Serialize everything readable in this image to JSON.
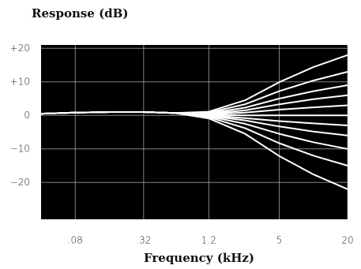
{
  "chart_data": {
    "type": "line",
    "title": "Response (dB)",
    "x_label": "Frequency (kHz)",
    "log_x": true,
    "grid": true,
    "color": "#ffffff",
    "background": "#000000",
    "x": [
      0.04,
      0.08,
      0.16,
      0.32,
      0.6,
      1.2,
      2.5,
      5,
      10,
      20
    ],
    "series": [
      {
        "values": [
          0.5,
          0.8,
          1,
          1,
          0.7,
          1.1,
          4.5,
          9.9,
          14.4,
          18
        ]
      },
      {
        "values": [
          0.5,
          0.8,
          1,
          1,
          0.7,
          0.85,
          3.3,
          7.2,
          10.4,
          13
        ]
      },
      {
        "values": [
          0.5,
          0.8,
          1,
          1,
          0.7,
          0.65,
          2.3,
          5,
          7.2,
          9
        ]
      },
      {
        "values": [
          0.5,
          0.8,
          1,
          1,
          0.7,
          0.5,
          1.5,
          3.3,
          4.8,
          6
        ]
      },
      {
        "values": [
          0.5,
          0.8,
          1,
          1,
          0.7,
          0.35,
          0.8,
          1.7,
          2.4,
          3
        ]
      },
      {
        "values": [
          0.5,
          0.8,
          1,
          1,
          0.7,
          0.2,
          0,
          0,
          0,
          0
        ]
      },
      {
        "values": [
          0.5,
          0.8,
          1,
          1,
          0.7,
          0.05,
          -0.8,
          -1.7,
          -2.4,
          -3
        ]
      },
      {
        "values": [
          0.5,
          0.8,
          1,
          1,
          0.7,
          -0.1,
          -1.5,
          -3.3,
          -4.8,
          -6
        ]
      },
      {
        "values": [
          0.5,
          0.8,
          1,
          1,
          0.7,
          -0.3,
          -2.5,
          -5.5,
          -8,
          -10
        ]
      },
      {
        "values": [
          0.5,
          0.8,
          1,
          1,
          0.7,
          -0.55,
          -3.8,
          -8.3,
          -12,
          -15
        ]
      },
      {
        "values": [
          0.5,
          0.8,
          1,
          1,
          0.7,
          -0.9,
          -5.5,
          -12.1,
          -17.6,
          -22
        ]
      }
    ],
    "xlim": [
      0.04,
      20
    ],
    "xticks": [
      {
        "value": 0.08,
        "label": ".08"
      },
      {
        "value": 0.32,
        "label": ".32"
      },
      1.2,
      5,
      20
    ],
    "ylim": [
      -31,
      21
    ],
    "yticks": [
      {
        "value": 20,
        "label": "+20"
      },
      {
        "value": 10,
        "label": "+10"
      },
      0,
      {
        "value": -10,
        "label": "−10"
      },
      {
        "value": -20,
        "label": "−20"
      }
    ]
  }
}
